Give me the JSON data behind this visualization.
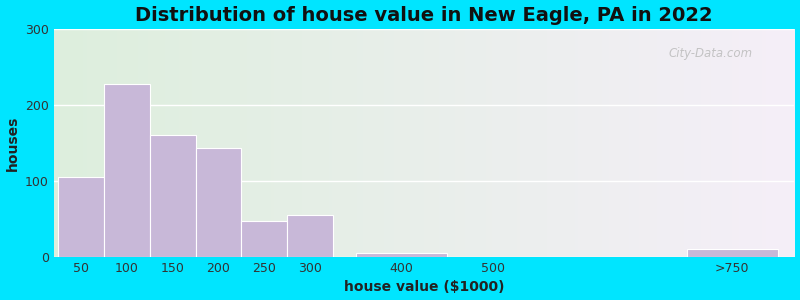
{
  "title": "Distribution of house value in New Eagle, PA in 2022",
  "xlabel": "house value ($1000)",
  "ylabel": "houses",
  "bar_centers": [
    50,
    100,
    150,
    200,
    250,
    300,
    400,
    500,
    762
  ],
  "bar_widths": [
    50,
    50,
    50,
    50,
    50,
    50,
    100,
    100,
    100
  ],
  "bar_heights": [
    105,
    228,
    160,
    143,
    47,
    55,
    5,
    0,
    11
  ],
  "xtick_positions": [
    50,
    100,
    150,
    200,
    250,
    300,
    400,
    500,
    762
  ],
  "xtick_labels": [
    "50",
    "100",
    "150",
    "200",
    "250",
    "300",
    "400",
    "500",
    ">750"
  ],
  "bar_color": "#c8b8d8",
  "bar_edgecolor": "#ffffff",
  "ylim": [
    0,
    300
  ],
  "xlim": [
    20,
    830
  ],
  "yticks": [
    0,
    100,
    200,
    300
  ],
  "background_outer": "#00e5ff",
  "background_inner_left": "#ddeedd",
  "background_inner_right": "#f5eff8",
  "grid_color": "#ffffff",
  "title_fontsize": 14,
  "axis_label_fontsize": 10,
  "tick_fontsize": 9,
  "watermark_text": "City-Data.com",
  "watermark_color": "#bbbbbb"
}
